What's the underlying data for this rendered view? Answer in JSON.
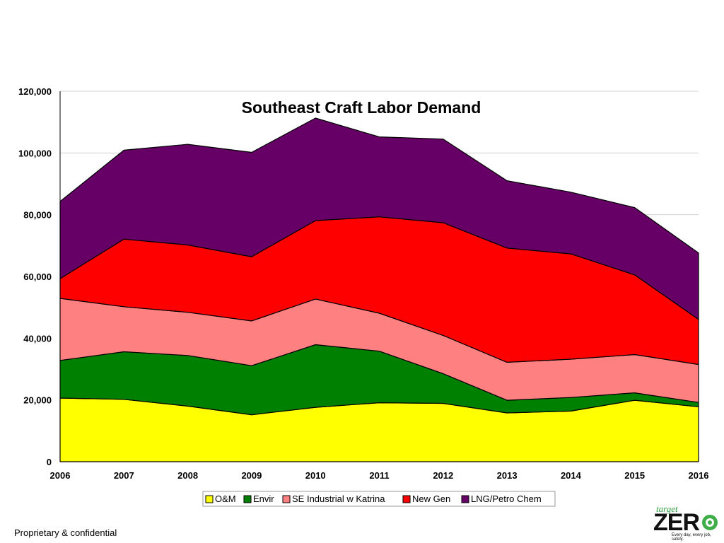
{
  "chart_data": {
    "type": "area",
    "stacked": true,
    "title": "Southeast Craft Labor Demand",
    "xlabel": "",
    "ylabel": "",
    "x": [
      "2006",
      "2007",
      "2008",
      "2009",
      "2010",
      "2011",
      "2012",
      "2013",
      "2014",
      "2015",
      "2016"
    ],
    "ylim": [
      0,
      120000
    ],
    "yticks": [
      "0",
      "20,000",
      "40,000",
      "60,000",
      "80,000",
      "100,000",
      "120,000"
    ],
    "grid": true,
    "legend_position": "bottom",
    "series": [
      {
        "name": "O&M",
        "color": "#ffff00",
        "values": [
          20600,
          20200,
          18000,
          15200,
          17600,
          19100,
          18900,
          15800,
          16400,
          19900,
          17800
        ]
      },
      {
        "name": "Envir",
        "color": "#008000",
        "values": [
          12200,
          15400,
          16400,
          15900,
          20300,
          16700,
          9600,
          4100,
          4400,
          2400,
          1400
        ]
      },
      {
        "name": "SE Industrial w Katrina",
        "color": "#ff8080",
        "values": [
          20100,
          14600,
          14000,
          14500,
          14800,
          12300,
          12400,
          12300,
          12400,
          12400,
          12300
        ]
      },
      {
        "name": "New Gen",
        "color": "#ff0000",
        "values": [
          6400,
          21900,
          21800,
          20800,
          25400,
          31200,
          36500,
          37000,
          34100,
          25800,
          14600
        ]
      },
      {
        "name": "LNG/Petro Chem",
        "color": "#660066",
        "values": [
          25000,
          28800,
          32600,
          33800,
          33200,
          25900,
          27100,
          21800,
          20000,
          21800,
          21500
        ]
      }
    ]
  },
  "footer": {
    "note": "Proprietary & confidential"
  },
  "logo": {
    "top_word": "target",
    "main_word": "ZER",
    "tagline": "Every day, every job, safely."
  }
}
